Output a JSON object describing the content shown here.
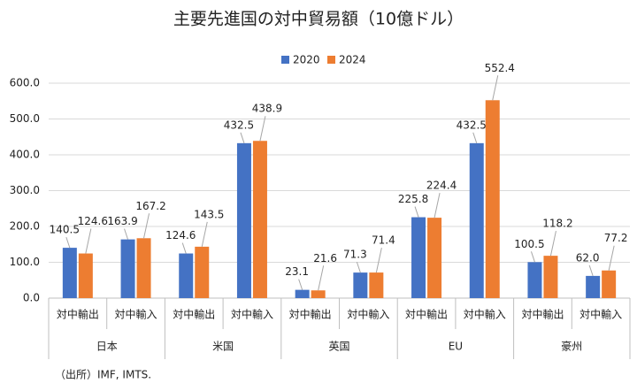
{
  "chart_data": {
    "type": "bar",
    "title": "主要先進国の対中貿易額（10億ドル）",
    "categories": [
      "対中輸出",
      "対中輸入",
      "対中輸出",
      "対中輸入",
      "対中輸出",
      "対中輸入",
      "対中輸出",
      "対中輸入",
      "対中輸出",
      "対中輸入"
    ],
    "groups": [
      "日本",
      "米国",
      "英国",
      "EU",
      "豪州"
    ],
    "series": [
      {
        "name": "2020",
        "color": "#4472c4",
        "values": [
          140.5,
          163.9,
          124.6,
          432.5,
          23.1,
          71.3,
          225.8,
          432.5,
          100.5,
          62.0
        ],
        "value_labels": [
          "140.5",
          "163.9",
          "124.6",
          "432.5",
          "23.1",
          "71.3",
          "225.8",
          "432.5",
          "100.5",
          "62.0"
        ]
      },
      {
        "name": "2024",
        "color": "#ed7d31",
        "values": [
          124.6,
          167.2,
          143.5,
          438.9,
          21.6,
          71.4,
          224.4,
          552.4,
          118.2,
          77.2
        ],
        "value_labels": [
          "124.6",
          "167.2",
          "143.5",
          "438.9",
          "21.6",
          "71.4",
          "224.4",
          "552.4",
          "118.2",
          "77.2"
        ]
      }
    ],
    "ylim": [
      0,
      600
    ],
    "yticks": [
      {
        "value": 0,
        "label": "0.0"
      },
      {
        "value": 100,
        "label": "100.0"
      },
      {
        "value": 200,
        "label": "200.0"
      },
      {
        "value": 300,
        "label": "300.0"
      },
      {
        "value": 400,
        "label": "400.0"
      },
      {
        "value": 500,
        "label": "500.0"
      },
      {
        "value": 600,
        "label": "600.0"
      }
    ],
    "grid": true,
    "legend": "top",
    "source": "（出所）IMF, IMTS."
  }
}
